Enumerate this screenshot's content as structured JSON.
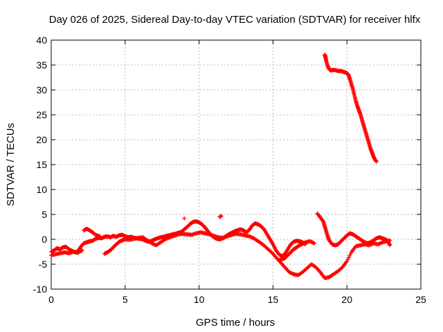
{
  "chart_data": {
    "type": "scatter",
    "title": "Day 026 of 2025, Sidereal Day-to-day VTEC variation (SDTVAR) for receiver hlfx",
    "xlabel": "GPS time / hours",
    "ylabel": "SDTVAR / TECUs",
    "xlim": [
      0,
      25
    ],
    "ylim": [
      -10,
      40
    ],
    "xticks": [
      0,
      5,
      10,
      15,
      20,
      25
    ],
    "yticks": [
      -10,
      -5,
      0,
      5,
      10,
      15,
      20,
      25,
      30,
      35,
      40
    ],
    "grid": true,
    "marker": "plus",
    "color": "#ff0000",
    "series": [
      {
        "points": [
          [
            0.0,
            -2.5
          ],
          [
            0.2,
            -2.2
          ],
          [
            0.4,
            -1.8
          ],
          [
            0.6,
            -2.0
          ],
          [
            0.8,
            -1.6
          ],
          [
            1.0,
            -1.5
          ],
          [
            1.2,
            -2.0
          ],
          [
            1.4,
            -2.3
          ],
          [
            1.6,
            -2.6
          ],
          [
            1.8,
            -2.4
          ],
          [
            2.0,
            -1.5
          ],
          [
            2.2,
            -0.8
          ],
          [
            2.4,
            -0.6
          ],
          [
            2.6,
            -0.4
          ],
          [
            2.8,
            -0.3
          ],
          [
            3.0,
            0.1
          ],
          [
            3.2,
            0.3
          ],
          [
            3.4,
            0.2
          ],
          [
            3.6,
            0.5
          ],
          [
            3.8,
            0.6
          ],
          [
            4.0,
            0.4
          ],
          [
            4.2,
            0.7
          ],
          [
            4.4,
            0.5
          ],
          [
            4.6,
            0.8
          ],
          [
            4.8,
            0.9
          ],
          [
            5.0,
            0.6
          ],
          [
            5.2,
            0.4
          ],
          [
            5.4,
            0.5
          ],
          [
            5.6,
            0.3
          ],
          [
            5.8,
            0.2
          ],
          [
            6.0,
            0.1
          ],
          [
            6.2,
            0.0
          ],
          [
            6.4,
            -0.3
          ],
          [
            6.6,
            -0.5
          ],
          [
            6.8,
            -0.3
          ],
          [
            7.0,
            0.0
          ],
          [
            7.2,
            0.2
          ],
          [
            7.4,
            0.4
          ],
          [
            7.6,
            0.5
          ],
          [
            7.8,
            0.7
          ],
          [
            8.0,
            0.8
          ],
          [
            8.2,
            1.0
          ],
          [
            8.4,
            1.1
          ],
          [
            8.6,
            1.3
          ],
          [
            8.8,
            1.5
          ],
          [
            9.0,
            2.0
          ],
          [
            9.2,
            2.5
          ],
          [
            9.4,
            3.1
          ],
          [
            9.6,
            3.5
          ],
          [
            9.8,
            3.6
          ],
          [
            10.0,
            3.4
          ],
          [
            10.2,
            3.0
          ],
          [
            10.4,
            2.4
          ],
          [
            10.6,
            1.6
          ],
          [
            10.8,
            0.9
          ],
          [
            11.0,
            0.4
          ],
          [
            11.2,
            0.1
          ],
          [
            11.4,
            0.0
          ],
          [
            11.6,
            0.2
          ],
          [
            11.8,
            0.6
          ],
          [
            12.0,
            1.0
          ],
          [
            12.2,
            1.3
          ],
          [
            12.4,
            1.6
          ],
          [
            12.6,
            1.8
          ],
          [
            12.8,
            2.0
          ],
          [
            13.0,
            1.8
          ],
          [
            13.2,
            1.4
          ],
          [
            13.4,
            1.9
          ],
          [
            13.6,
            2.8
          ],
          [
            13.8,
            3.2
          ],
          [
            14.0,
            3.0
          ],
          [
            14.2,
            2.6
          ],
          [
            14.4,
            2.0
          ],
          [
            14.6,
            1.0
          ],
          [
            14.8,
            0.0
          ],
          [
            15.0,
            -1.0
          ],
          [
            15.2,
            -2.2
          ],
          [
            15.4,
            -3.0
          ],
          [
            15.6,
            -3.4
          ],
          [
            15.8,
            -3.0
          ],
          [
            16.0,
            -2.0
          ],
          [
            16.2,
            -1.0
          ],
          [
            16.4,
            -0.5
          ],
          [
            16.6,
            -0.3
          ],
          [
            16.8,
            -0.4
          ],
          [
            17.0,
            -0.6
          ],
          [
            17.2,
            -1.0
          ]
        ]
      },
      {
        "points": [
          [
            0.0,
            -3.2
          ],
          [
            0.3,
            -3.0
          ],
          [
            0.6,
            -2.8
          ],
          [
            0.9,
            -2.6
          ],
          [
            1.2,
            -2.8
          ],
          [
            1.5,
            -2.5
          ],
          [
            1.8,
            -2.7
          ],
          [
            2.1,
            -2.2
          ],
          [
            2.2,
            1.8
          ],
          [
            2.4,
            2.1
          ],
          [
            2.6,
            1.8
          ],
          [
            2.8,
            1.4
          ],
          [
            3.0,
            0.9
          ],
          [
            3.3,
            0.6
          ],
          [
            3.6,
            -2.9
          ],
          [
            3.8,
            -2.6
          ],
          [
            4.0,
            -2.2
          ],
          [
            4.2,
            -1.6
          ],
          [
            4.4,
            -1.0
          ],
          [
            4.6,
            -0.5
          ],
          [
            4.8,
            -0.2
          ],
          [
            5.0,
            0.0
          ],
          [
            5.3,
            -0.1
          ],
          [
            5.6,
            0.1
          ],
          [
            5.9,
            0.3
          ],
          [
            6.2,
            0.4
          ],
          [
            6.5,
            -0.2
          ],
          [
            6.8,
            -0.8
          ],
          [
            7.1,
            -1.2
          ],
          [
            7.4,
            -0.6
          ],
          [
            7.7,
            0.0
          ],
          [
            8.0,
            0.4
          ],
          [
            8.3,
            0.7
          ],
          [
            8.6,
            1.0
          ],
          [
            8.9,
            1.1
          ],
          [
            9.2,
            1.0
          ],
          [
            9.5,
            0.9
          ],
          [
            9.8,
            1.2
          ],
          [
            10.1,
            1.4
          ],
          [
            10.4,
            1.2
          ],
          [
            10.7,
            1.0
          ],
          [
            11.0,
            0.7
          ],
          [
            11.3,
            0.4
          ],
          [
            11.6,
            0.3
          ],
          [
            11.9,
            0.6
          ],
          [
            12.2,
            0.9
          ],
          [
            12.5,
            1.1
          ],
          [
            12.8,
            1.0
          ],
          [
            13.1,
            0.8
          ],
          [
            13.4,
            0.6
          ],
          [
            13.7,
            0.2
          ],
          [
            14.0,
            -0.4
          ],
          [
            14.3,
            -1.0
          ],
          [
            14.6,
            -1.8
          ],
          [
            14.9,
            -2.6
          ],
          [
            15.2,
            -3.6
          ],
          [
            15.5,
            -4.6
          ],
          [
            15.8,
            -5.6
          ],
          [
            16.1,
            -6.6
          ],
          [
            16.4,
            -7.0
          ],
          [
            16.7,
            -7.2
          ],
          [
            17.0,
            -6.6
          ],
          [
            17.3,
            -5.8
          ],
          [
            17.6,
            -5.0
          ],
          [
            17.9,
            -5.6
          ],
          [
            18.2,
            -6.6
          ],
          [
            18.5,
            -7.8
          ],
          [
            18.8,
            -7.6
          ],
          [
            19.1,
            -7.0
          ],
          [
            19.4,
            -6.4
          ],
          [
            19.7,
            -5.6
          ],
          [
            20.0,
            -4.4
          ],
          [
            20.3,
            -2.6
          ],
          [
            20.6,
            -1.4
          ],
          [
            20.9,
            -1.2
          ],
          [
            21.2,
            -1.0
          ],
          [
            21.5,
            -1.2
          ],
          [
            21.8,
            -0.8
          ],
          [
            22.1,
            -1.0
          ],
          [
            22.4,
            -0.6
          ],
          [
            22.7,
            -0.4
          ],
          [
            22.9,
            -0.2
          ]
        ]
      },
      {
        "points": [
          [
            9.0,
            4.2
          ],
          [
            11.4,
            4.5
          ],
          [
            11.5,
            4.7
          ],
          [
            15.4,
            -4.2
          ],
          [
            15.6,
            -4.0
          ],
          [
            15.8,
            -3.8
          ],
          [
            16.0,
            -3.2
          ],
          [
            16.2,
            -2.6
          ],
          [
            16.4,
            -2.0
          ],
          [
            16.6,
            -1.6
          ],
          [
            16.8,
            -1.2
          ],
          [
            17.0,
            -0.9
          ],
          [
            17.2,
            -0.6
          ],
          [
            17.5,
            -0.4
          ],
          [
            17.8,
            -0.8
          ]
        ]
      },
      {
        "points": [
          [
            18.0,
            5.2
          ],
          [
            18.2,
            4.4
          ],
          [
            18.4,
            3.6
          ],
          [
            18.5,
            2.6
          ],
          [
            18.6,
            1.6
          ],
          [
            18.7,
            0.6
          ],
          [
            18.8,
            -0.2
          ],
          [
            19.0,
            -1.0
          ],
          [
            19.2,
            -1.2
          ],
          [
            19.4,
            -1.0
          ],
          [
            19.6,
            -0.4
          ],
          [
            19.8,
            0.2
          ],
          [
            20.0,
            0.8
          ],
          [
            20.2,
            1.2
          ],
          [
            20.4,
            1.0
          ],
          [
            20.6,
            0.6
          ],
          [
            20.8,
            0.2
          ],
          [
            21.0,
            -0.2
          ],
          [
            21.2,
            -0.6
          ],
          [
            21.4,
            -0.8
          ],
          [
            21.6,
            -0.6
          ],
          [
            21.8,
            -0.2
          ],
          [
            22.0,
            0.2
          ],
          [
            22.2,
            0.4
          ],
          [
            22.4,
            0.2
          ],
          [
            22.6,
            0.0
          ],
          [
            22.8,
            -0.4
          ],
          [
            22.9,
            -1.2
          ]
        ]
      },
      {
        "points": [
          [
            18.5,
            37.1
          ],
          [
            18.55,
            36.6
          ],
          [
            18.6,
            35.8
          ],
          [
            18.7,
            34.8
          ],
          [
            18.8,
            34.2
          ],
          [
            18.9,
            33.9
          ],
          [
            19.0,
            34.0
          ],
          [
            19.2,
            34.0
          ],
          [
            19.4,
            33.8
          ],
          [
            19.6,
            33.8
          ],
          [
            19.8,
            33.6
          ],
          [
            20.0,
            33.4
          ],
          [
            20.1,
            33.0
          ],
          [
            20.2,
            32.2
          ],
          [
            20.3,
            31.2
          ],
          [
            20.4,
            30.2
          ],
          [
            20.5,
            29.0
          ],
          [
            20.6,
            27.8
          ],
          [
            20.7,
            26.8
          ],
          [
            20.8,
            26.0
          ],
          [
            20.9,
            25.2
          ],
          [
            21.0,
            24.2
          ],
          [
            21.1,
            23.2
          ],
          [
            21.2,
            22.2
          ],
          [
            21.3,
            21.2
          ],
          [
            21.4,
            20.2
          ],
          [
            21.5,
            19.2
          ],
          [
            21.6,
            18.2
          ],
          [
            21.7,
            17.4
          ],
          [
            21.8,
            16.6
          ],
          [
            21.9,
            16.0
          ],
          [
            22.0,
            15.6
          ]
        ]
      }
    ]
  }
}
